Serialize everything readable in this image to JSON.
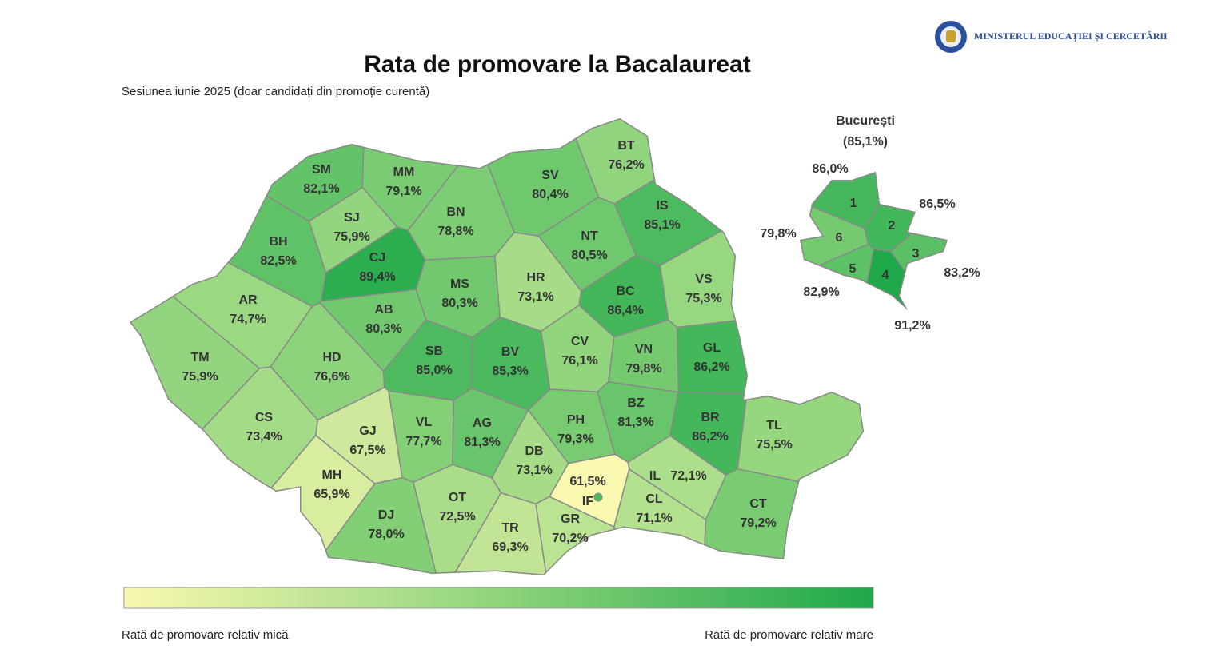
{
  "header": {
    "ministry": "MINISTERUL EDUCAȚIEI ȘI CERCETĂRII"
  },
  "chart_data": {
    "type": "choropleth",
    "title": "Rata de promovare la Bacalaureat",
    "subtitle": "Sesiunea iunie 2025 (doar candidați din promoție curentă)",
    "categories": [
      "SM",
      "MM",
      "BT",
      "SV",
      "BN",
      "SJ",
      "IS",
      "BH",
      "CJ",
      "NT",
      "MS",
      "HR",
      "BC",
      "VS",
      "AR",
      "AB",
      "TM",
      "HD",
      "SB",
      "BV",
      "CV",
      "VN",
      "GL",
      "CS",
      "GJ",
      "VL",
      "AG",
      "PH",
      "BZ",
      "BR",
      "TL",
      "DB",
      "MH",
      "DJ",
      "OT",
      "TR",
      "GR",
      "IF",
      "IL",
      "CL",
      "CT"
    ],
    "values": [
      82.1,
      79.1,
      76.2,
      80.4,
      78.8,
      75.9,
      85.1,
      82.5,
      89.4,
      80.5,
      80.3,
      73.1,
      86.4,
      75.3,
      74.7,
      80.3,
      75.9,
      76.6,
      85.0,
      85.3,
      76.1,
      79.8,
      86.2,
      73.4,
      67.5,
      77.7,
      81.3,
      79.3,
      81.3,
      86.2,
      75.5,
      73.1,
      65.9,
      78.0,
      72.5,
      69.3,
      70.2,
      61.5,
      72.1,
      71.1,
      79.2
    ],
    "value_labels": [
      "82,1%",
      "79,1%",
      "76,2%",
      "80,4%",
      "78,8%",
      "75,9%",
      "85,1%",
      "82,5%",
      "89,4%",
      "80,5%",
      "80,3%",
      "73,1%",
      "86,4%",
      "75,3%",
      "74,7%",
      "80,3%",
      "75,9%",
      "76,6%",
      "85,0%",
      "85,3%",
      "76,1%",
      "79,8%",
      "86,2%",
      "73,4%",
      "67,5%",
      "77,7%",
      "81,3%",
      "79,3%",
      "81,3%",
      "86,2%",
      "75,5%",
      "73,1%",
      "65,9%",
      "78,0%",
      "72,5%",
      "69,3%",
      "70,2%",
      "61,5%",
      "72,1%",
      "71,1%",
      "79,2%"
    ],
    "inset": {
      "title": "București",
      "value": 85.1,
      "value_label": "(85,1%)",
      "categories": [
        "1",
        "2",
        "3",
        "4",
        "5",
        "6"
      ],
      "values": [
        86.0,
        86.5,
        83.2,
        91.2,
        82.9,
        79.8
      ],
      "value_labels": [
        "86,0%",
        "86,5%",
        "83,2%",
        "91,2%",
        "82,9%",
        "79,8%"
      ]
    },
    "legend": {
      "low": "Rată de promovare relativ mică",
      "high": "Rată de promovare relativ mare"
    }
  }
}
